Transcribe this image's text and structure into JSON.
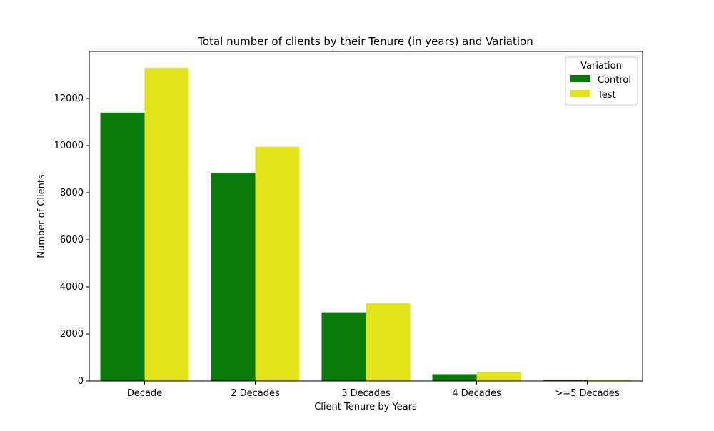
{
  "chart_data": {
    "type": "bar",
    "title": "Total number of clients by their Tenure (in years) and Variation",
    "xlabel": "Client Tenure by Years",
    "ylabel": "Number of Clients",
    "categories": [
      "Decade",
      "2 Decades",
      "3 Decades",
      "4 Decades",
      ">=5 Decades"
    ],
    "series": [
      {
        "name": "Control",
        "color": "#0a7a0a",
        "values": [
          11400,
          8850,
          2920,
          290,
          35
        ]
      },
      {
        "name": "Test",
        "color": "#e3e31a",
        "values": [
          13300,
          9950,
          3300,
          370,
          40
        ]
      }
    ],
    "ylim": [
      0,
      14000
    ],
    "yticks": [
      "0",
      "2000",
      "4000",
      "6000",
      "8000",
      "10000",
      "12000"
    ],
    "grid": false,
    "legend": {
      "title": "Variation",
      "placement": "top-right"
    }
  }
}
